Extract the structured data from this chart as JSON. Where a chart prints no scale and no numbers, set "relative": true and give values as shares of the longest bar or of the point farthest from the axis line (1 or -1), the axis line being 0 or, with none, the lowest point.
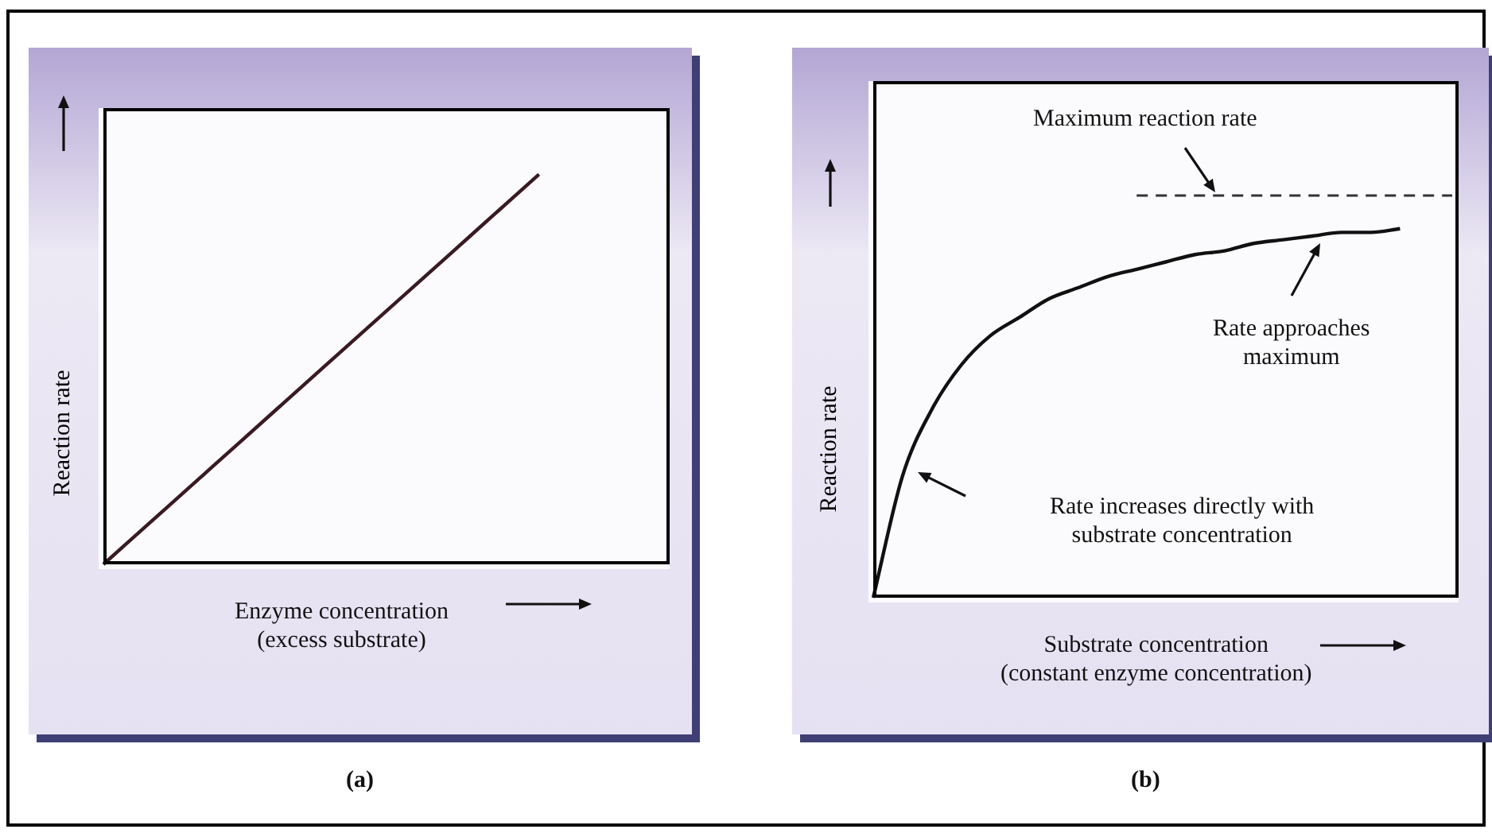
{
  "chart_data": [
    {
      "type": "line",
      "title": "(a)",
      "xlabel": "Enzyme concentration\n(excess substrate)",
      "ylabel": "Reaction rate",
      "relative": true,
      "color": "#3a1a22",
      "categories": [
        null,
        null,
        null,
        null,
        null,
        null,
        null,
        null,
        null,
        null,
        null,
        null,
        null,
        null
      ],
      "values": [
        0,
        0.1,
        0.2,
        0.3,
        0.4,
        0.5,
        0.6,
        0.7,
        0.8,
        0.9,
        1,
        null,
        null,
        null
      ]
    },
    {
      "type": "line",
      "title": "(b)",
      "xlabel": "Substrate concentration\n(constant enzyme concentration)",
      "ylabel": "Reaction rate",
      "relative": true,
      "color": "#111111",
      "categories": [
        null,
        null,
        null,
        null,
        null,
        null,
        null,
        null,
        null,
        null,
        null,
        null,
        null,
        null,
        null,
        null,
        null,
        null,
        null,
        null,
        null
      ],
      "values": [
        0,
        0.33,
        0.51,
        0.63,
        0.71,
        0.76,
        0.81,
        0.84,
        0.87,
        0.89,
        0.91,
        0.93,
        0.94,
        0.96,
        0.97,
        0.98,
        0.99,
        0.99,
        1,
        null,
        null
      ],
      "ref_lines": [
        {
          "axis": "y",
          "value": 1.09,
          "label": "Maximum reaction rate",
          "line_style": "dashed",
          "color": "#333333"
        }
      ],
      "annotations": [
        "Rate approaches\nmaximum",
        "Rate increases directly with\nsubstrate concentration"
      ]
    }
  ]
}
